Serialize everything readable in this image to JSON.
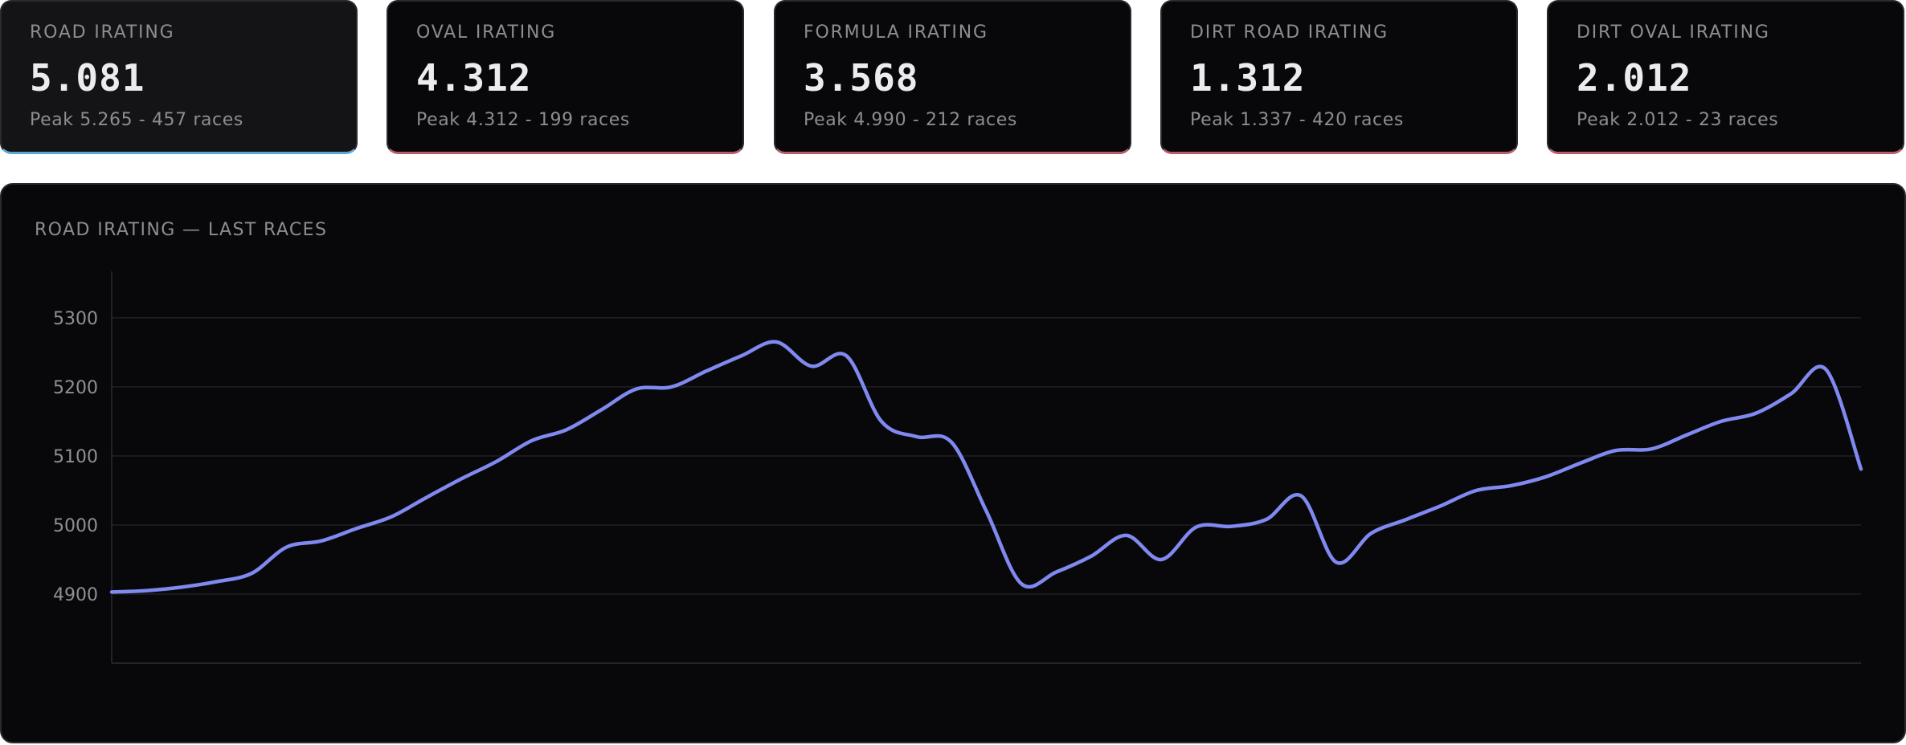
{
  "cards": [
    {
      "title": "ROAD IRATING",
      "value": "5.081",
      "sub": "Peak 5.265 - 457 races",
      "active": true,
      "accent": "#5aa7d6"
    },
    {
      "title": "OVAL IRATING",
      "value": "4.312",
      "sub": "Peak 4.312 - 199 races",
      "active": false,
      "accent": "#b85c68"
    },
    {
      "title": "FORMULA IRATING",
      "value": "3.568",
      "sub": "Peak 4.990 - 212 races",
      "active": false,
      "accent": "#b85c68"
    },
    {
      "title": "DIRT ROAD IRATING",
      "value": "1.312",
      "sub": "Peak 1.337 - 420 races",
      "active": false,
      "accent": "#b85c68"
    },
    {
      "title": "DIRT OVAL IRATING",
      "value": "2.012",
      "sub": "Peak 2.012 - 23 races",
      "active": false,
      "accent": "#b85c68"
    }
  ],
  "chart_panel": {
    "title": "ROAD IRATING — LAST RACES"
  },
  "chart_data": {
    "type": "line",
    "title": "ROAD IRATING — LAST RACES",
    "xlabel": "",
    "ylabel": "",
    "ylim": [
      4800,
      5365
    ],
    "yticks": [
      4900,
      5000,
      5100,
      5200,
      5300
    ],
    "grid": true,
    "line_color": "#8089f0",
    "series": [
      {
        "values": [
          4903,
          4905,
          4910,
          4918,
          4930,
          4968,
          4977,
          4995,
          5012,
          5040,
          5067,
          5092,
          5122,
          5138,
          5167,
          5197,
          5200,
          5223,
          5245,
          5265,
          5230,
          5245,
          5150,
          5128,
          5120,
          5020,
          4915,
          4932,
          4955,
          4985,
          4950,
          4997,
          4998,
          5008,
          5042,
          4946,
          4988,
          5008,
          5028,
          5050,
          5057,
          5070,
          5090,
          5108,
          5110,
          5130,
          5150,
          5162,
          5190,
          5225,
          5081
        ]
      }
    ]
  }
}
